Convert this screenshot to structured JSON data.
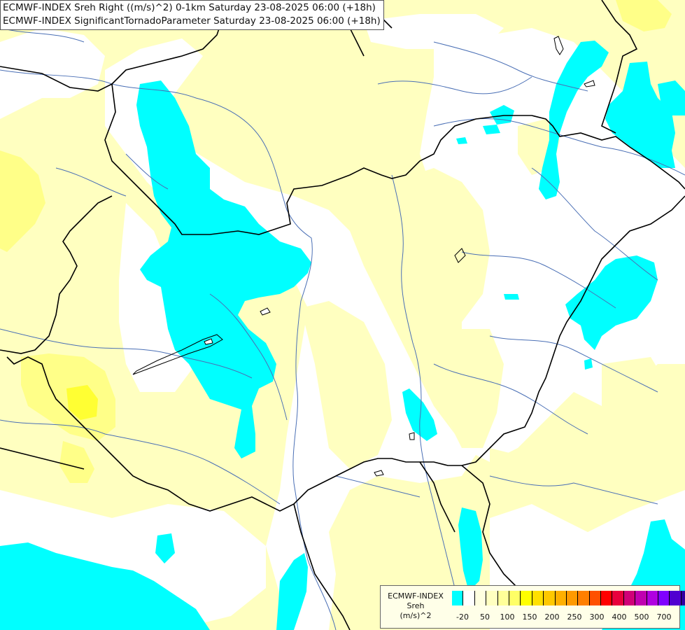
{
  "title": {
    "line1": "ECMWF-INDEX Sreh Right ((m/s)^2) 0-1km Saturday 23-08-2025 06:00 (+18h)",
    "line2": "ECMWF-INDEX SignificantTornadoParameter Saturday 23-08-2025 06:00 (+18h)"
  },
  "legend": {
    "source": "ECMWF-INDEX",
    "param": "Sreh",
    "unit": "(m/s)^2",
    "colors": [
      "#00ffff",
      "#ffffff",
      "#ffffe0",
      "#ffffc0",
      "#ffff99",
      "#ffff66",
      "#ffff00",
      "#ffe000",
      "#ffc800",
      "#ffb000",
      "#ff9a00",
      "#ff7f00",
      "#ff5000",
      "#ff0000",
      "#e8003c",
      "#d00078",
      "#c000b0",
      "#b000e0",
      "#8000ff",
      "#5000d0",
      "#3000a0",
      "#000080"
    ],
    "tick_labels": [
      "-20",
      "50",
      "100",
      "150",
      "200",
      "250",
      "300",
      "400",
      "500",
      "700"
    ]
  },
  "colors": {
    "white_field": "#ffffff",
    "light_yellow": "#ffffc0",
    "yellow": "#ffff80",
    "bright_yellow": "#ffff33",
    "cyan": "#00ffff",
    "border": "#000000",
    "river": "#3b5fa5"
  }
}
